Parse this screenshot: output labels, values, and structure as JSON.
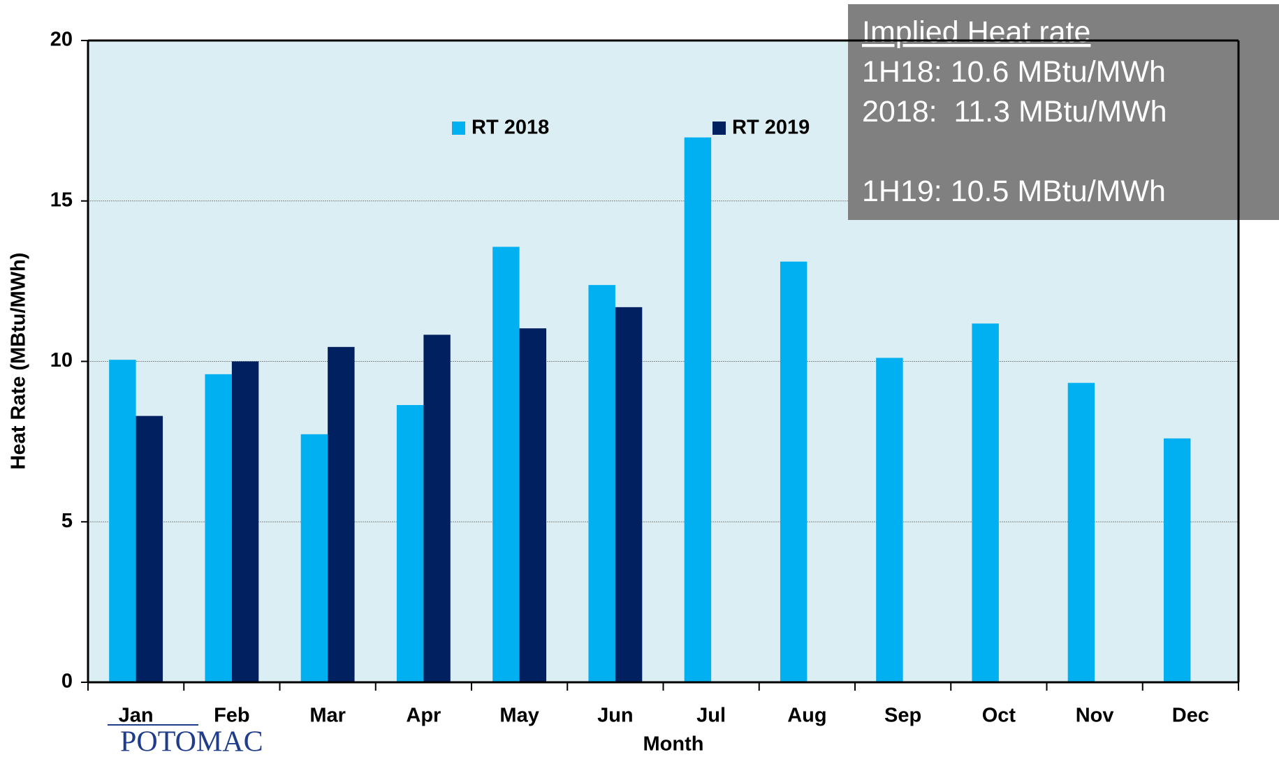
{
  "chart_data": {
    "type": "bar",
    "x_label": "Month",
    "y_label": "Heat Rate (MBtu/MWh)",
    "categories": [
      "Jan",
      "Feb",
      "Mar",
      "Apr",
      "May",
      "Jun",
      "Jul",
      "Aug",
      "Sep",
      "Oct",
      "Nov",
      "Dec"
    ],
    "series": [
      {
        "name": "RT 2018",
        "color": "#00b0f0",
        "values": [
          10.05,
          9.6,
          7.73,
          8.64,
          13.57,
          12.38,
          16.98,
          13.11,
          10.11,
          11.18,
          9.33,
          7.6
        ]
      },
      {
        "name": "RT 2019",
        "color": "#002060",
        "values": [
          8.3,
          10.0,
          10.45,
          10.83,
          11.03,
          11.69,
          null,
          null,
          null,
          null,
          null,
          null
        ]
      }
    ],
    "ylim": [
      0,
      20
    ],
    "yticks": [
      0,
      5,
      10,
      15,
      20
    ],
    "grid": true,
    "annotation": {
      "title": "Implied Heat rate",
      "lines": [
        "1H18: 10.6 MBtu/MWh",
        "2018:  11.3 MBtu/MWh",
        "",
        "1H19: 10.5 MBtu/MWh"
      ]
    },
    "logo": "POTOMAC"
  }
}
